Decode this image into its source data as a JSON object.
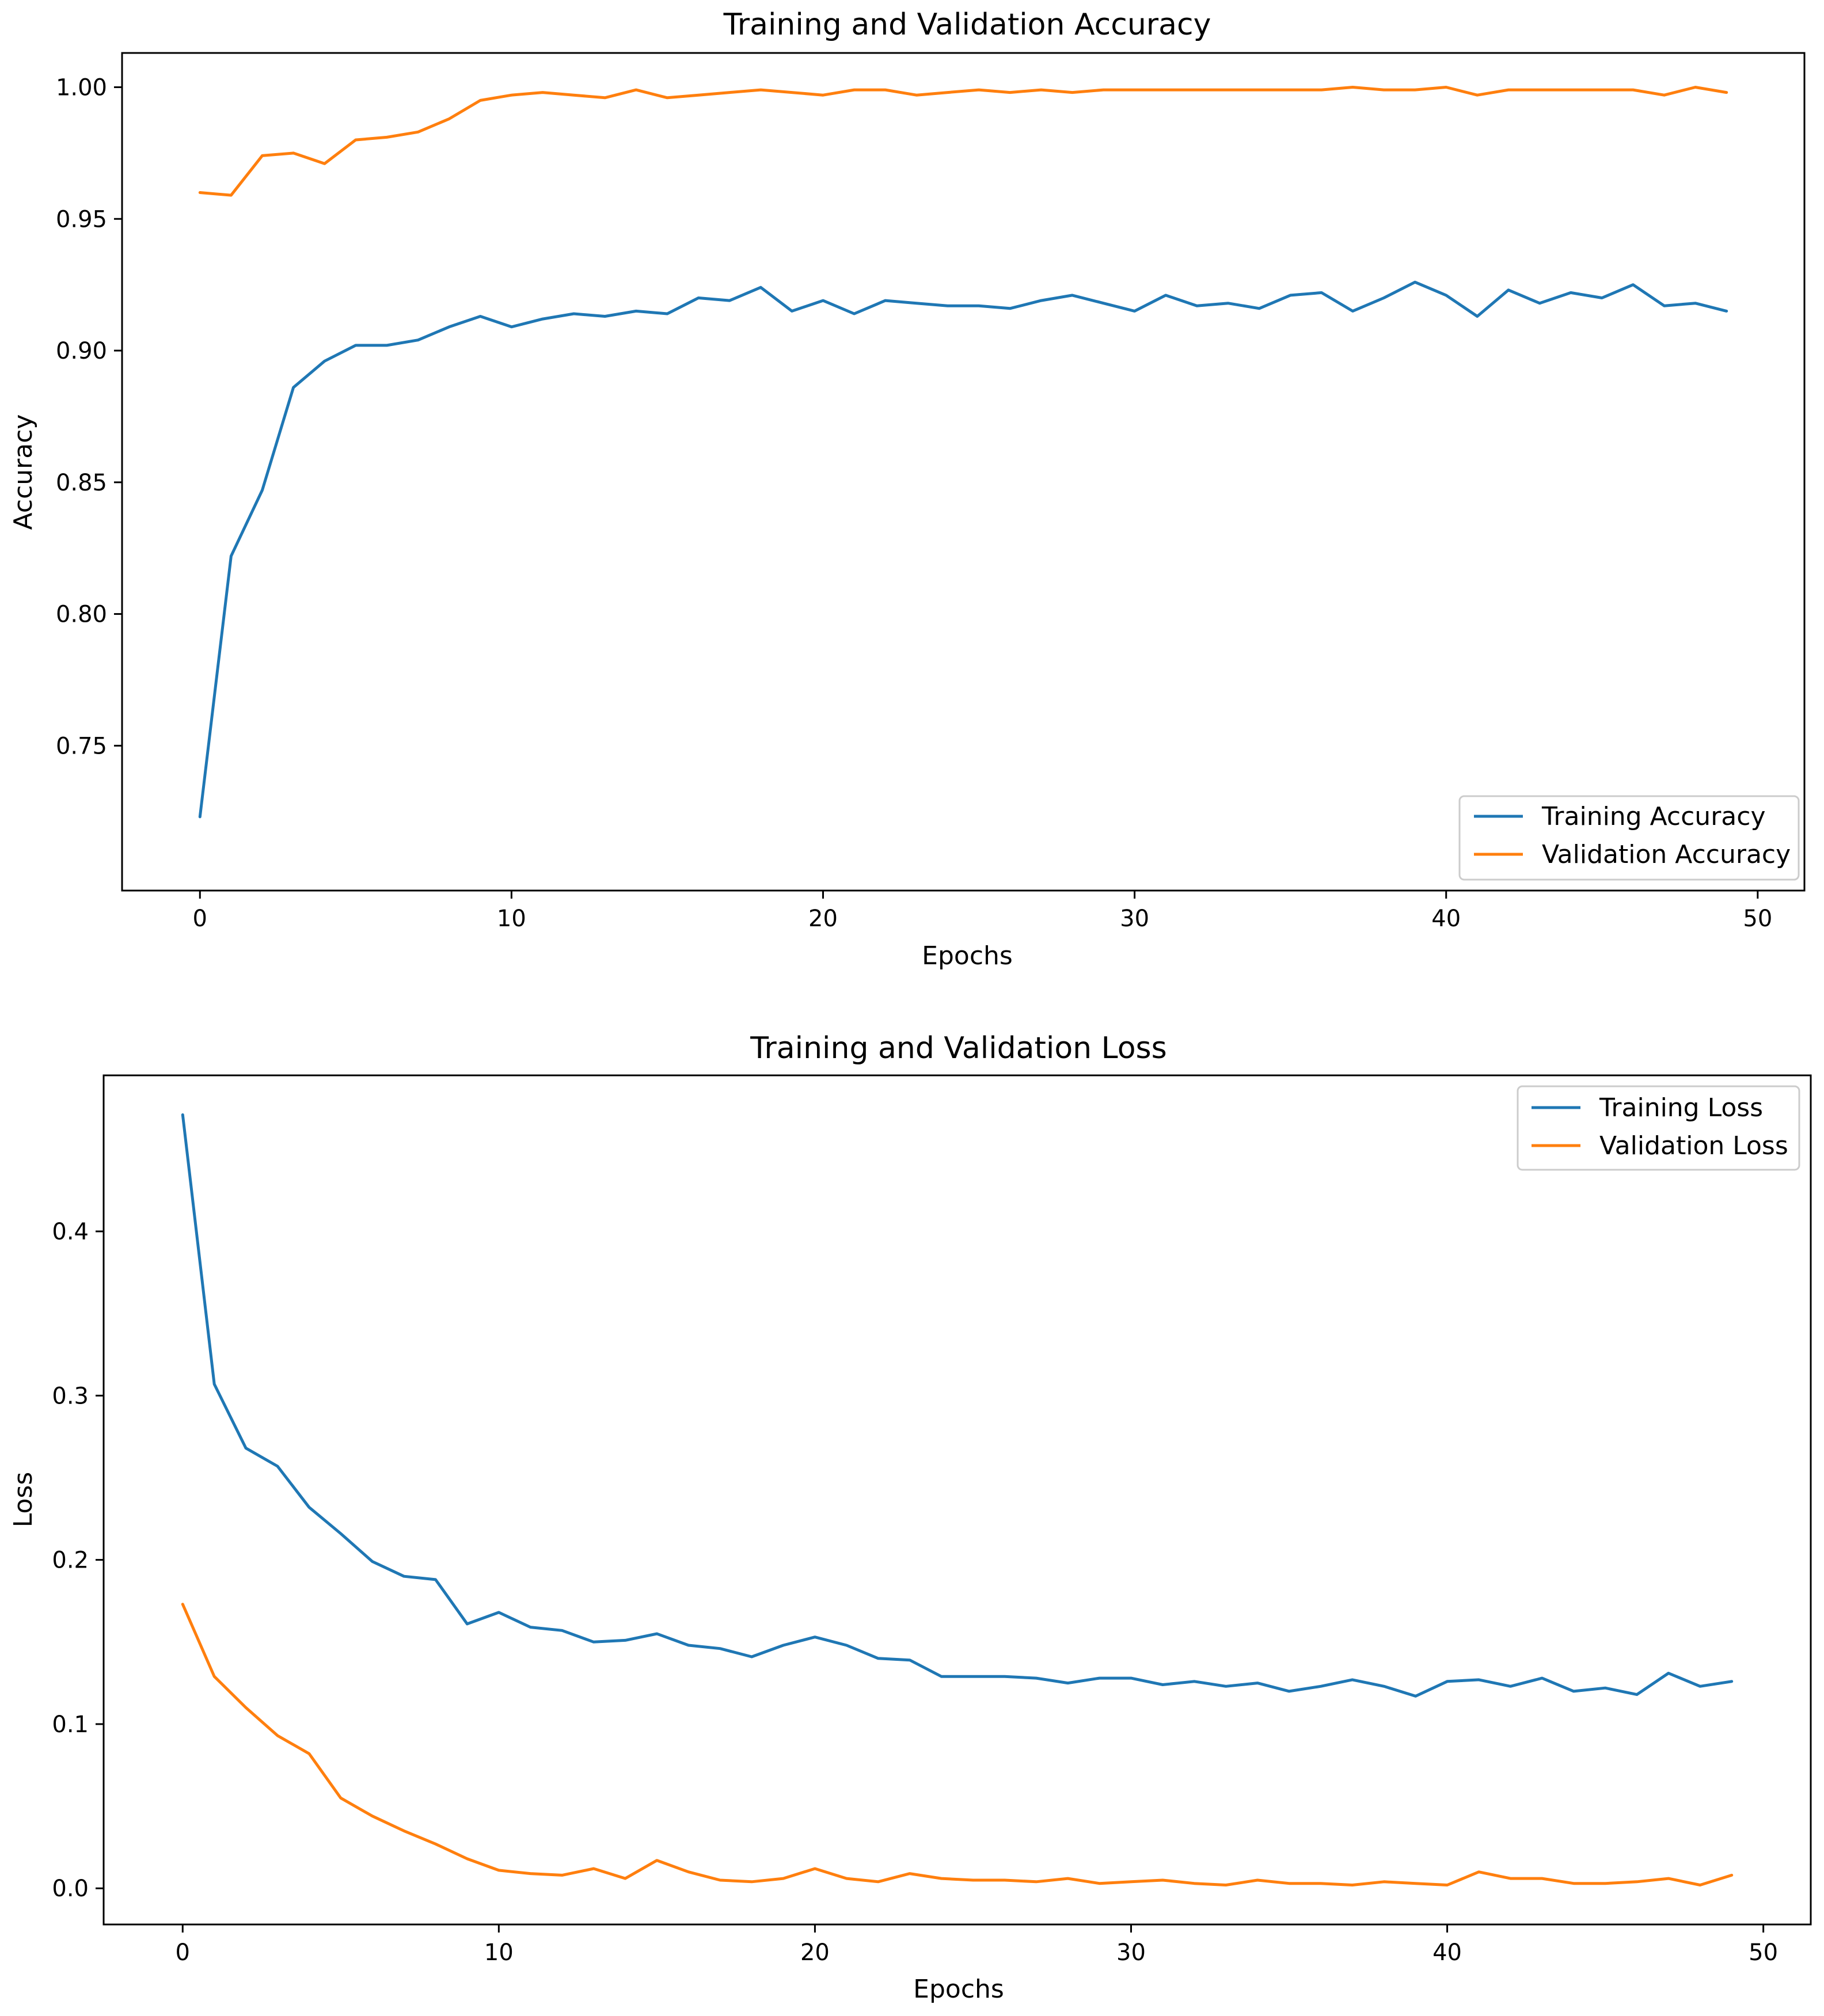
{
  "chart_data": [
    {
      "type": "line",
      "title": "Training and Validation Accuracy",
      "xlabel": "Epochs",
      "ylabel": "Accuracy",
      "xlim": [
        -2.5,
        51.5
      ],
      "ylim": [
        0.695,
        1.013
      ],
      "xticks": [
        0,
        10,
        20,
        30,
        40,
        50
      ],
      "xtick_labels": [
        "0",
        "10",
        "20",
        "30",
        "40",
        "50"
      ],
      "yticks": [
        0.75,
        0.8,
        0.85,
        0.9,
        0.95,
        1.0
      ],
      "ytick_labels": [
        "0.75",
        "0.80",
        "0.85",
        "0.90",
        "0.95",
        "1.00"
      ],
      "grid": false,
      "legend_position": "lower-right",
      "x": [
        0,
        1,
        2,
        3,
        4,
        5,
        6,
        7,
        8,
        9,
        10,
        11,
        12,
        13,
        14,
        15,
        16,
        17,
        18,
        19,
        20,
        21,
        22,
        23,
        24,
        25,
        26,
        27,
        28,
        29,
        30,
        31,
        32,
        33,
        34,
        35,
        36,
        37,
        38,
        39,
        40,
        41,
        42,
        43,
        44,
        45,
        46,
        47,
        48,
        49
      ],
      "series": [
        {
          "name": "Training Accuracy",
          "color": "#1f77b4",
          "values": [
            0.723,
            0.822,
            0.847,
            0.886,
            0.896,
            0.902,
            0.902,
            0.904,
            0.909,
            0.913,
            0.909,
            0.912,
            0.914,
            0.913,
            0.915,
            0.914,
            0.92,
            0.919,
            0.924,
            0.915,
            0.919,
            0.914,
            0.919,
            0.918,
            0.917,
            0.917,
            0.916,
            0.919,
            0.921,
            0.918,
            0.915,
            0.921,
            0.917,
            0.918,
            0.916,
            0.921,
            0.922,
            0.915,
            0.92,
            0.926,
            0.921,
            0.913,
            0.923,
            0.918,
            0.922,
            0.92,
            0.925,
            0.917,
            0.918,
            0.915
          ]
        },
        {
          "name": "Validation Accuracy",
          "color": "#ff7f0e",
          "values": [
            0.96,
            0.959,
            0.974,
            0.975,
            0.971,
            0.98,
            0.981,
            0.983,
            0.988,
            0.995,
            0.997,
            0.998,
            0.997,
            0.996,
            0.999,
            0.996,
            0.997,
            0.998,
            0.999,
            0.998,
            0.997,
            0.999,
            0.999,
            0.997,
            0.998,
            0.999,
            0.998,
            0.999,
            0.998,
            0.999,
            0.999,
            0.999,
            0.999,
            0.999,
            0.999,
            0.999,
            0.999,
            1.0,
            0.999,
            0.999,
            1.0,
            0.997,
            0.999,
            0.999,
            0.999,
            0.999,
            0.999,
            0.997,
            1.0,
            0.998
          ]
        }
      ]
    },
    {
      "type": "line",
      "title": "Training and Validation Loss",
      "xlabel": "Epochs",
      "ylabel": "Loss",
      "xlim": [
        -2.5,
        51.5
      ],
      "ylim": [
        -0.022,
        0.495
      ],
      "xticks": [
        0,
        10,
        20,
        30,
        40,
        50
      ],
      "xtick_labels": [
        "0",
        "10",
        "20",
        "30",
        "40",
        "50"
      ],
      "yticks": [
        0.0,
        0.1,
        0.2,
        0.3,
        0.4
      ],
      "ytick_labels": [
        "0.0",
        "0.1",
        "0.2",
        "0.3",
        "0.4"
      ],
      "grid": false,
      "legend_position": "upper-right",
      "x": [
        0,
        1,
        2,
        3,
        4,
        5,
        6,
        7,
        8,
        9,
        10,
        11,
        12,
        13,
        14,
        15,
        16,
        17,
        18,
        19,
        20,
        21,
        22,
        23,
        24,
        25,
        26,
        27,
        28,
        29,
        30,
        31,
        32,
        33,
        34,
        35,
        36,
        37,
        38,
        39,
        40,
        41,
        42,
        43,
        44,
        45,
        46,
        47,
        48,
        49
      ],
      "series": [
        {
          "name": "Training Loss",
          "color": "#1f77b4",
          "values": [
            0.471,
            0.307,
            0.268,
            0.257,
            0.232,
            0.216,
            0.199,
            0.19,
            0.188,
            0.161,
            0.168,
            0.159,
            0.157,
            0.15,
            0.151,
            0.155,
            0.148,
            0.146,
            0.141,
            0.148,
            0.153,
            0.148,
            0.14,
            0.139,
            0.129,
            0.129,
            0.129,
            0.128,
            0.125,
            0.128,
            0.128,
            0.124,
            0.126,
            0.123,
            0.125,
            0.12,
            0.123,
            0.127,
            0.123,
            0.117,
            0.126,
            0.127,
            0.123,
            0.128,
            0.12,
            0.122,
            0.118,
            0.131,
            0.123,
            0.126
          ]
        },
        {
          "name": "Validation Loss",
          "color": "#ff7f0e",
          "values": [
            0.173,
            0.129,
            0.11,
            0.093,
            0.082,
            0.055,
            0.044,
            0.035,
            0.027,
            0.018,
            0.011,
            0.009,
            0.008,
            0.012,
            0.006,
            0.017,
            0.01,
            0.005,
            0.004,
            0.006,
            0.012,
            0.006,
            0.004,
            0.009,
            0.006,
            0.005,
            0.005,
            0.004,
            0.006,
            0.003,
            0.004,
            0.005,
            0.003,
            0.002,
            0.005,
            0.003,
            0.003,
            0.002,
            0.004,
            0.003,
            0.002,
            0.01,
            0.006,
            0.006,
            0.003,
            0.003,
            0.004,
            0.006,
            0.002,
            0.008
          ]
        }
      ]
    }
  ]
}
